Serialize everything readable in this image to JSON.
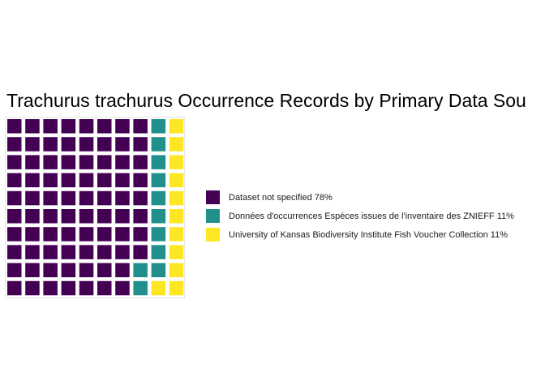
{
  "chart_data": {
    "type": "waffle",
    "title": "Trachurus trachurus Occurrence Records by Primary Data Sou",
    "rows": 10,
    "columns": 10,
    "series": [
      {
        "name": "Dataset not specified 78%",
        "value": 78,
        "color": "#440154"
      },
      {
        "name": "Données d'occurrences Espèces issues de l'inventaire des ZNIEFF 11%",
        "value": 11,
        "color": "#21908C"
      },
      {
        "name": "University of Kansas Biodiversity Institute Fish Voucher Collection 11%",
        "value": 11,
        "color": "#FDE725"
      }
    ],
    "legend_position": "right"
  }
}
